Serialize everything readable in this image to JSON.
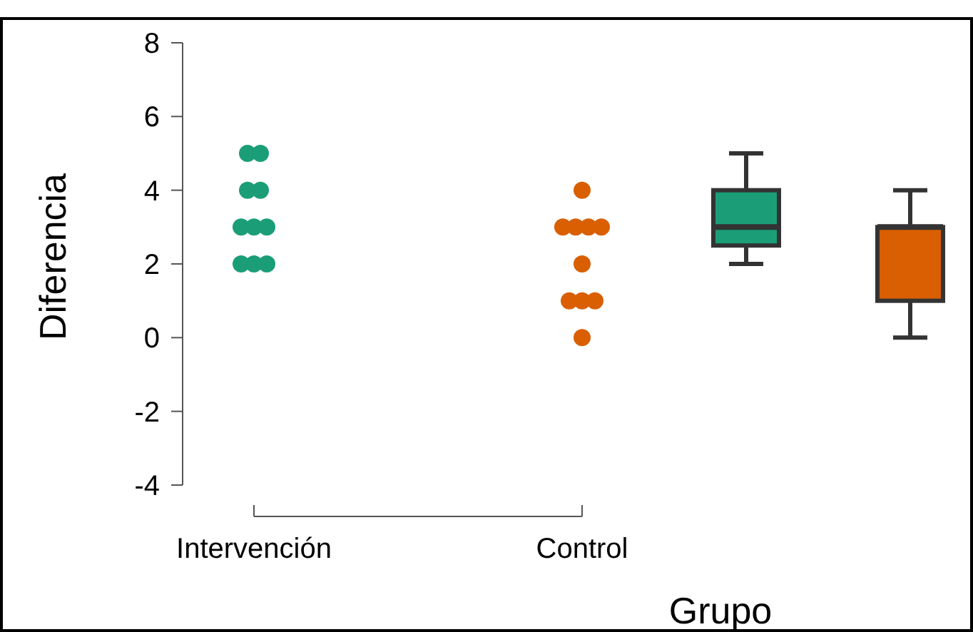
{
  "chart_data": {
    "type": "box",
    "xlabel": "Grupo",
    "ylabel": "Diferencia",
    "categories": [
      "Intervención",
      null,
      "Control",
      null,
      null
    ],
    "ylim": [
      -4,
      8
    ],
    "yticks": [
      -4,
      -2,
      0,
      2,
      4,
      6,
      8
    ],
    "grid": false,
    "boxes": [
      null,
      null,
      null,
      {
        "low": 2,
        "q1": 2.5,
        "median": 3,
        "q3": 4,
        "high": 5
      },
      {
        "low": 0,
        "q1": 1,
        "median": 3,
        "q3": 3,
        "high": 4
      }
    ],
    "colors": [
      null,
      null,
      null,
      "#1b9e77",
      "#d95f02"
    ],
    "series": [
      {
        "type": "scatter",
        "color": "#1b9e77",
        "x": [
          "Intervención",
          "Intervención",
          "Intervención",
          "Intervención",
          "Intervención",
          "Intervención",
          "Intervención",
          "Intervención",
          "Intervención",
          "Intervención"
        ],
        "values": [
          5,
          5,
          4,
          4,
          3,
          3,
          3,
          2,
          2,
          2
        ]
      },
      {
        "type": "scatter",
        "color": "#d95f02",
        "x": [
          "Control",
          "Control",
          "Control",
          "Control",
          "Control",
          "Control",
          "Control",
          "Control",
          "Control",
          "Control"
        ],
        "values": [
          4,
          3,
          3,
          3,
          3,
          2,
          1,
          1,
          1,
          0
        ]
      }
    ]
  }
}
